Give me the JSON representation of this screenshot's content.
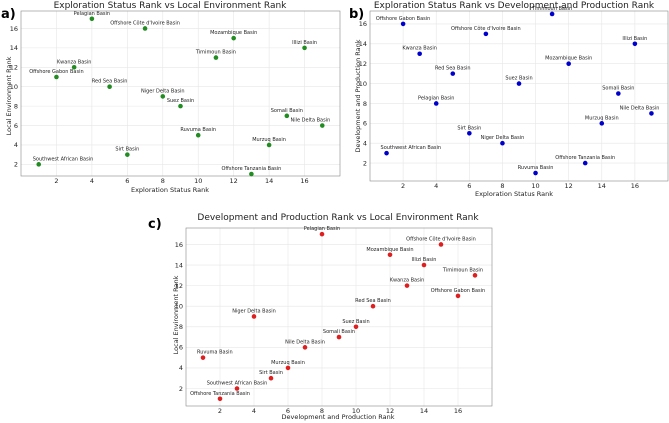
{
  "chart_data": [
    {
      "type": "scatter",
      "panel_letter": "a)",
      "title": "Exploration Status Rank vs Local Environment Rank",
      "xlabel": "Exploration Status Rank",
      "ylabel": "Local Environment Rank",
      "xlim": [
        0,
        18
      ],
      "ylim": [
        0.8,
        17.8
      ],
      "xticks": [
        2,
        4,
        6,
        8,
        10,
        12,
        14,
        16
      ],
      "yticks": [
        2,
        4,
        6,
        8,
        10,
        12,
        14,
        16
      ],
      "color": "#228b22",
      "points": [
        {
          "label": "Pelagian Basin",
          "x": 4,
          "y": 17
        },
        {
          "label": "Offshore Côte d'Ivoire Basin",
          "x": 7,
          "y": 16
        },
        {
          "label": "Mozambique Basin",
          "x": 12,
          "y": 15
        },
        {
          "label": "Illizi Basin",
          "x": 16,
          "y": 14
        },
        {
          "label": "Timimoun Basin",
          "x": 11,
          "y": 13
        },
        {
          "label": "Kwanza Basin",
          "x": 3,
          "y": 12
        },
        {
          "label": "Offshore Gabon Basin",
          "x": 2,
          "y": 11
        },
        {
          "label": "Red Sea Basin",
          "x": 5,
          "y": 10
        },
        {
          "label": "Niger Delta Basin",
          "x": 8,
          "y": 9
        },
        {
          "label": "Suez Basin",
          "x": 9,
          "y": 8
        },
        {
          "label": "Somali Basin",
          "x": 15,
          "y": 7
        },
        {
          "label": "Nile Delta Basin",
          "x": 17,
          "y": 6
        },
        {
          "label": "Ruvuma Basin",
          "x": 10,
          "y": 5
        },
        {
          "label": "Murzuq Basin",
          "x": 14,
          "y": 4
        },
        {
          "label": "Sirt Basin",
          "x": 6,
          "y": 3
        },
        {
          "label": "Southwest African Basin",
          "x": 1,
          "y": 2
        },
        {
          "label": "Offshore Tanzania  Basin",
          "x": 13,
          "y": 1
        }
      ]
    },
    {
      "type": "scatter",
      "panel_letter": "b)",
      "title": "Exploration Status Rank vs Development and Production Rank",
      "xlabel": "Exploration Status Rank",
      "ylabel": "Development and Production Rank",
      "xlim": [
        0,
        18
      ],
      "ylim": [
        0.2,
        17.3
      ],
      "xticks": [
        2,
        4,
        6,
        8,
        10,
        12,
        14,
        16
      ],
      "yticks": [
        2,
        4,
        6,
        8,
        10,
        12,
        14,
        16
      ],
      "color": "#0000cd",
      "points": [
        {
          "label": "Timimoun Basin",
          "x": 11,
          "y": 17
        },
        {
          "label": "Offshore Gabon Basin",
          "x": 2,
          "y": 16
        },
        {
          "label": "Offshore Côte d'Ivoire Basin",
          "x": 7,
          "y": 15
        },
        {
          "label": "Illizi Basin",
          "x": 16,
          "y": 14
        },
        {
          "label": "Kwanza Basin",
          "x": 3,
          "y": 13
        },
        {
          "label": "Mozambique Basin",
          "x": 12,
          "y": 12
        },
        {
          "label": "Red Sea Basin",
          "x": 5,
          "y": 11
        },
        {
          "label": "Suez Basin",
          "x": 9,
          "y": 10
        },
        {
          "label": "Somali Basin",
          "x": 15,
          "y": 9
        },
        {
          "label": "Pelagian Basin",
          "x": 4,
          "y": 8
        },
        {
          "label": "Nile Delta Basin",
          "x": 17,
          "y": 7
        },
        {
          "label": "Murzuq Basin",
          "x": 14,
          "y": 6
        },
        {
          "label": "Sirt Basin",
          "x": 6,
          "y": 5
        },
        {
          "label": "Niger Delta Basin",
          "x": 8,
          "y": 4
        },
        {
          "label": "Southwest African Basin",
          "x": 1,
          "y": 3
        },
        {
          "label": "Offshore Tanzania  Basin",
          "x": 13,
          "y": 2
        },
        {
          "label": "Ruvuma Basin",
          "x": 10,
          "y": 1
        }
      ]
    },
    {
      "type": "scatter",
      "panel_letter": "c)",
      "title": "Development and Production Rank vs Local Environment Rank",
      "xlabel": "Development and Production Rank",
      "ylabel": "Local Environment Rank",
      "xlim": [
        0,
        18
      ],
      "ylim": [
        0.3,
        17.6
      ],
      "xticks": [
        2,
        4,
        6,
        8,
        10,
        12,
        14,
        16
      ],
      "yticks": [
        2,
        4,
        6,
        8,
        10,
        12,
        14,
        16
      ],
      "color": "#dd1f1f",
      "points": [
        {
          "label": "Pelagian Basin",
          "x": 8,
          "y": 17
        },
        {
          "label": "Offshore Côte d'Ivoire Basin",
          "x": 15,
          "y": 16
        },
        {
          "label": "Mozambique Basin",
          "x": 12,
          "y": 15
        },
        {
          "label": "Illizi Basin",
          "x": 14,
          "y": 14
        },
        {
          "label": "Timimoun Basin",
          "x": 17,
          "y": 13
        },
        {
          "label": "Kwanza Basin",
          "x": 13,
          "y": 12
        },
        {
          "label": "Offshore Gabon Basin",
          "x": 16,
          "y": 11
        },
        {
          "label": "Red Sea Basin",
          "x": 11,
          "y": 10
        },
        {
          "label": "Niger Delta Basin",
          "x": 4,
          "y": 9
        },
        {
          "label": "Suez Basin",
          "x": 10,
          "y": 8
        },
        {
          "label": "Somali Basin",
          "x": 9,
          "y": 7
        },
        {
          "label": "Nile Delta Basin",
          "x": 7,
          "y": 6
        },
        {
          "label": "Ruvuma Basin",
          "x": 1,
          "y": 5
        },
        {
          "label": "Murzuq Basin",
          "x": 6,
          "y": 4
        },
        {
          "label": "Sirt Basin",
          "x": 5,
          "y": 3
        },
        {
          "label": "Southwest African Basin",
          "x": 3,
          "y": 2
        },
        {
          "label": "Offshore Tanzania  Basin",
          "x": 2,
          "y": 1
        }
      ]
    }
  ]
}
